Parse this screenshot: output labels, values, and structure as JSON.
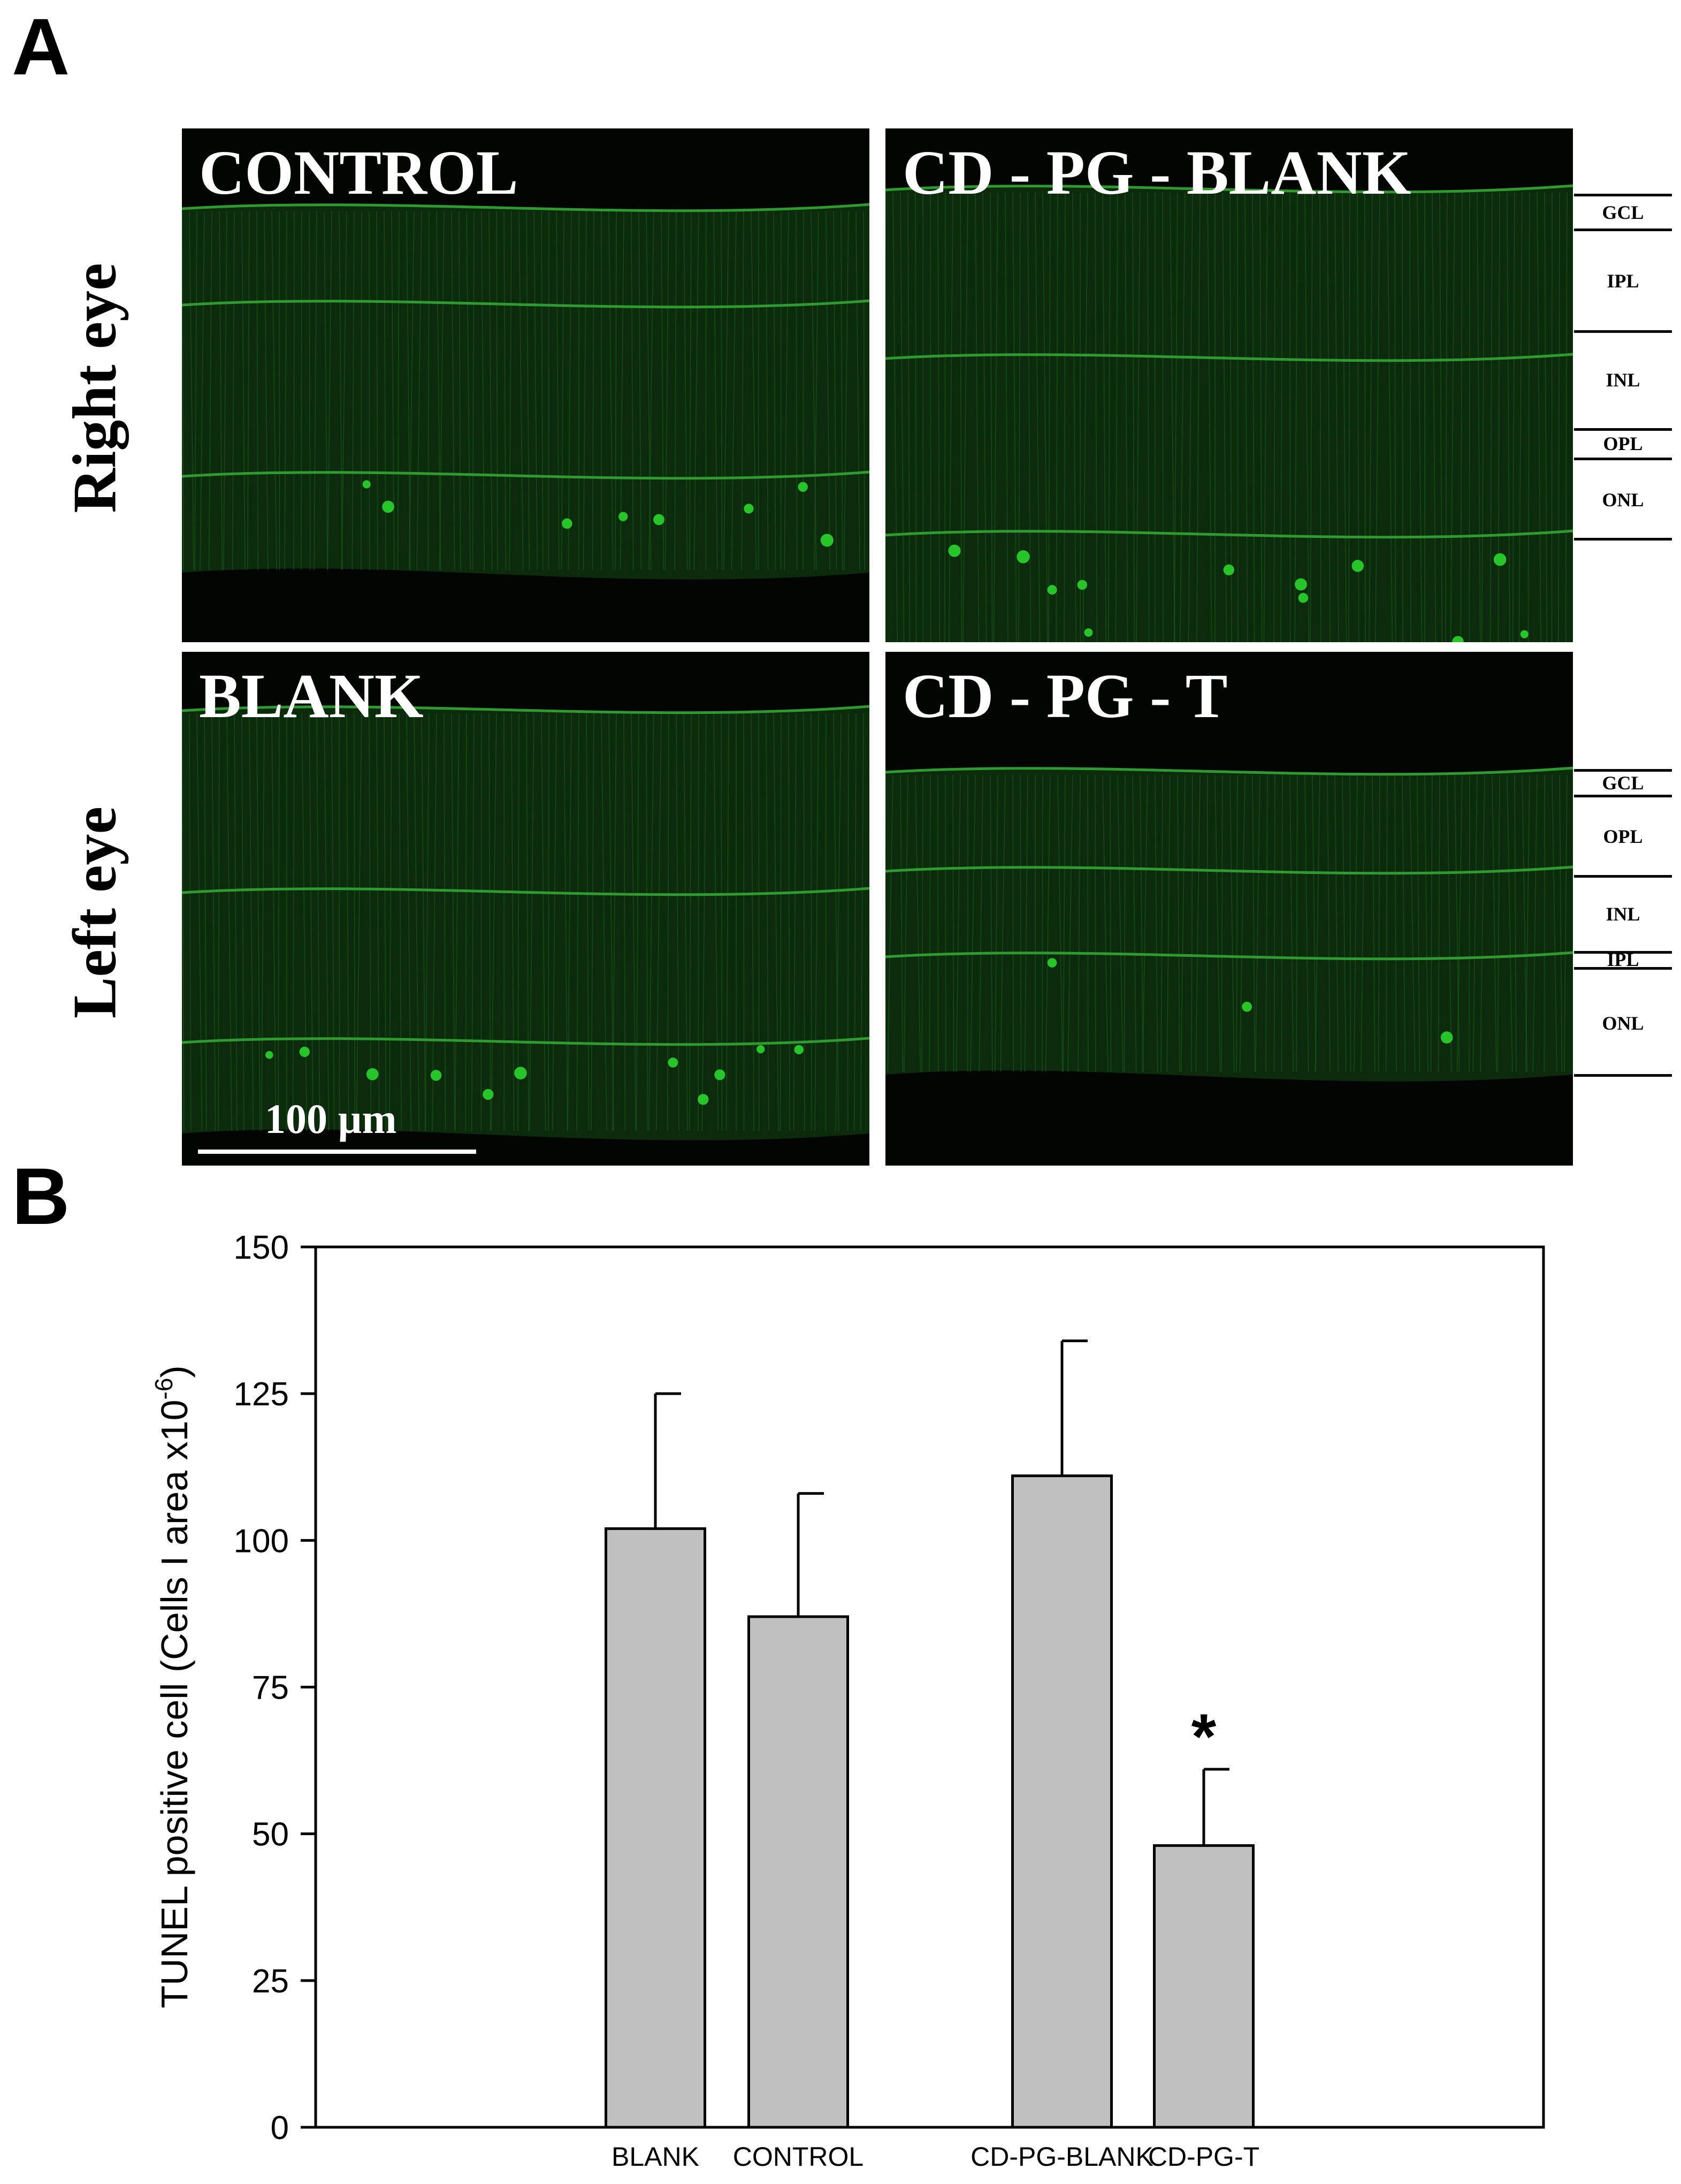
{
  "panels": {
    "a_letter": "A",
    "b_letter": "B"
  },
  "row_labels": {
    "right_eye": "Right eye",
    "left_eye": "Left eye"
  },
  "micrographs": {
    "control_title": "CONTROL",
    "cd_pg_blank_title": "CD - PG - BLANK",
    "blank_title": "BLANK",
    "cd_pg_t_title": "CD - PG - T",
    "scale_bar": "100 µm",
    "stain_color": "#27c42a"
  },
  "retinal_layers_top": [
    "GCL",
    "IPL",
    "INL",
    "OPL",
    "ONL"
  ],
  "retinal_layers_bottom": [
    "GCL",
    "OPL",
    "INL",
    "IPL",
    "ONL"
  ],
  "chart_data": {
    "type": "bar",
    "categories": [
      "BLANK",
      "CONTROL",
      "CD-PG-BLANK",
      "CD-PG-T"
    ],
    "values": [
      102,
      87,
      111,
      48
    ],
    "error_upper": [
      125,
      108,
      134,
      61
    ],
    "significance": [
      "",
      "",
      "",
      "*"
    ],
    "ylabel": "TUNEL positive cell (Cells I area x10",
    "ylabel_superscript": "-6",
    "ylabel_close": ")",
    "ylim": [
      0,
      150
    ],
    "yticks": [
      0,
      25,
      50,
      75,
      100,
      125,
      150
    ],
    "bar_color": "#c0c0c0",
    "grid": false
  }
}
